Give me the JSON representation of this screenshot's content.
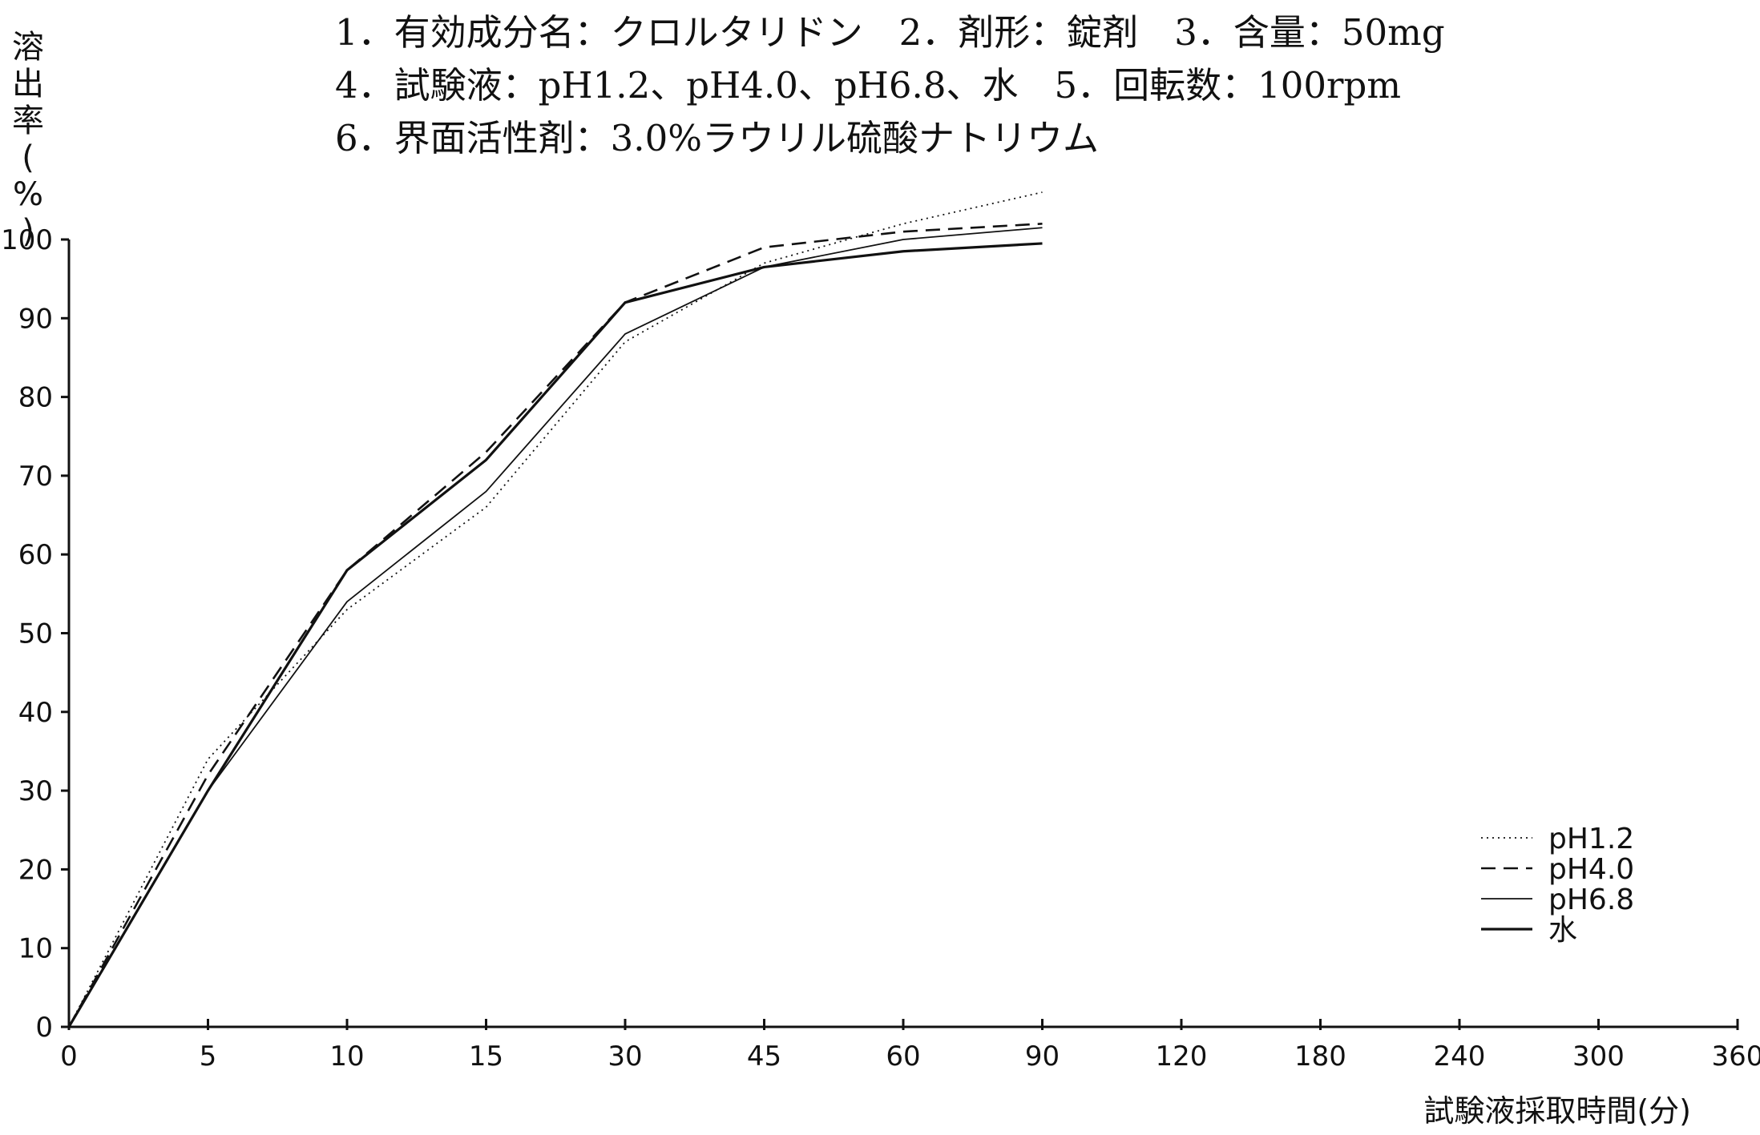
{
  "header": {
    "line1": "1．有効成分名：クロルタリドン　2．剤形：錠剤　3．含量：50mg",
    "line2": "4．試験液：pH1.2、pH4.0、pH6.8、水　5．回転数：100rpm",
    "line3": "6．界面活性剤：3.0%ラウリル硫酸ナトリウム"
  },
  "chart_data": {
    "type": "line",
    "ylabel_chars": [
      "溶",
      "出",
      "率",
      "(",
      "%",
      ")"
    ],
    "xlabel": "試験液採取時間(分)",
    "x_ticks": [
      "0",
      "5",
      "10",
      "15",
      "30",
      "45",
      "60",
      "90",
      "120",
      "180",
      "240",
      "300",
      "360"
    ],
    "y_ticks": [
      "0",
      "10",
      "20",
      "30",
      "40",
      "50",
      "60",
      "70",
      "80",
      "90",
      "100"
    ],
    "ylim": [
      0,
      100
    ],
    "x_scale": "categorical (sampling times)",
    "legend_position": "right",
    "grid": false,
    "series": [
      {
        "name": "pH1.2",
        "style": "dotted",
        "width": 1.8,
        "points": [
          [
            0,
            0
          ],
          [
            5,
            34
          ],
          [
            10,
            53
          ],
          [
            15,
            66
          ],
          [
            30,
            87
          ],
          [
            45,
            97
          ],
          [
            60,
            102
          ],
          [
            90,
            106
          ]
        ]
      },
      {
        "name": "pH4.0",
        "style": "dashed",
        "width": 2.6,
        "points": [
          [
            0,
            0
          ],
          [
            5,
            32
          ],
          [
            10,
            58
          ],
          [
            15,
            73
          ],
          [
            30,
            92
          ],
          [
            45,
            99
          ],
          [
            60,
            101
          ],
          [
            90,
            102
          ]
        ]
      },
      {
        "name": "pH6.8",
        "style": "solid",
        "width": 1.8,
        "points": [
          [
            0,
            0
          ],
          [
            5,
            30
          ],
          [
            10,
            54
          ],
          [
            15,
            68
          ],
          [
            30,
            88
          ],
          [
            45,
            96.5
          ],
          [
            60,
            100
          ],
          [
            90,
            101.5
          ]
        ]
      },
      {
        "name": "水",
        "style": "solid",
        "width": 3.2,
        "points": [
          [
            0,
            0
          ],
          [
            5,
            30
          ],
          [
            10,
            58
          ],
          [
            15,
            72
          ],
          [
            30,
            92
          ],
          [
            45,
            96.5
          ],
          [
            60,
            98.5
          ],
          [
            90,
            99.5
          ]
        ]
      }
    ]
  }
}
